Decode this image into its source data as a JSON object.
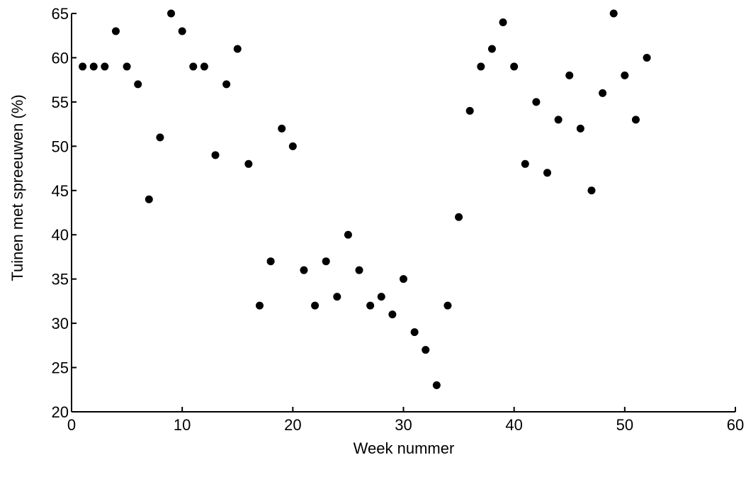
{
  "chart_data": {
    "type": "scatter",
    "title": "",
    "xlabel": "Week nummer",
    "ylabel": "Tuinen met spreeuwen (%)",
    "xlim": [
      0,
      60
    ],
    "ylim": [
      20,
      65
    ],
    "x_ticks": [
      0,
      10,
      20,
      30,
      40,
      50,
      60
    ],
    "y_ticks": [
      20,
      25,
      30,
      35,
      40,
      45,
      50,
      55,
      60,
      65
    ],
    "grid": false,
    "legend": "none",
    "marker_color": "#000000",
    "series": [
      {
        "points": [
          [
            1,
            59
          ],
          [
            2,
            59
          ],
          [
            3,
            59
          ],
          [
            4,
            63
          ],
          [
            5,
            59
          ],
          [
            6,
            57
          ],
          [
            7,
            44
          ],
          [
            8,
            51
          ],
          [
            9,
            65
          ],
          [
            10,
            63
          ],
          [
            11,
            59
          ],
          [
            12,
            59
          ],
          [
            13,
            49
          ],
          [
            14,
            57
          ],
          [
            15,
            61
          ],
          [
            16,
            48
          ],
          [
            17,
            32
          ],
          [
            18,
            37
          ],
          [
            19,
            52
          ],
          [
            20,
            50
          ],
          [
            21,
            36
          ],
          [
            22,
            32
          ],
          [
            23,
            37
          ],
          [
            24,
            33
          ],
          [
            25,
            40
          ],
          [
            26,
            36
          ],
          [
            27,
            32
          ],
          [
            28,
            33
          ],
          [
            29,
            31
          ],
          [
            30,
            35
          ],
          [
            31,
            29
          ],
          [
            32,
            27
          ],
          [
            33,
            23
          ],
          [
            34,
            32
          ],
          [
            35,
            42
          ],
          [
            36,
            54
          ],
          [
            37,
            59
          ],
          [
            38,
            61
          ],
          [
            39,
            64
          ],
          [
            40,
            59
          ],
          [
            41,
            48
          ],
          [
            42,
            55
          ],
          [
            43,
            47
          ],
          [
            44,
            53
          ],
          [
            45,
            58
          ],
          [
            46,
            52
          ],
          [
            47,
            45
          ],
          [
            48,
            56
          ],
          [
            49,
            65
          ],
          [
            50,
            58
          ],
          [
            51,
            53
          ],
          [
            52,
            60
          ]
        ]
      }
    ]
  }
}
